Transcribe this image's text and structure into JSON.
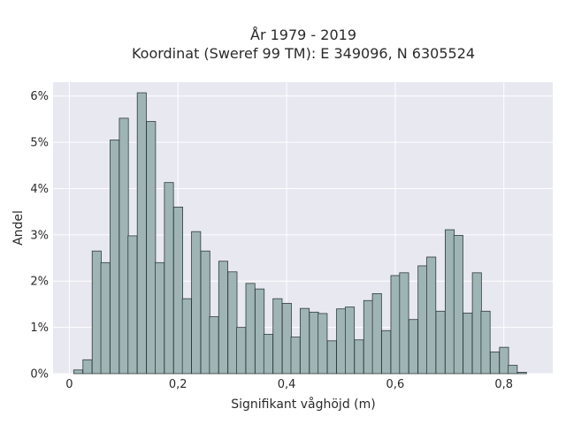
{
  "chart_data": {
    "type": "bar",
    "title_line1": "År 1979 - 2019",
    "title_line2": "Koordinat (Sweref 99 TM): E 349096, N 6305524",
    "xlabel": "Signifikant våghöjd (m)",
    "ylabel": "Andel",
    "xlim": [
      -0.03,
      0.89
    ],
    "ylim": [
      0,
      6.3
    ],
    "x_ticks": [
      0,
      0.2,
      0.4,
      0.6,
      0.8
    ],
    "x_tick_labels": [
      "0",
      "0,2",
      "0,4",
      "0,6",
      "0,8"
    ],
    "y_ticks": [
      0,
      1,
      2,
      3,
      4,
      5,
      6
    ],
    "y_tick_labels": [
      "0%",
      "1%",
      "2%",
      "3%",
      "4%",
      "5%",
      "6%"
    ],
    "bin_width": 0.0167,
    "bin_starts": [
      0.008,
      0.025,
      0.042,
      0.058,
      0.075,
      0.092,
      0.108,
      0.125,
      0.142,
      0.158,
      0.175,
      0.192,
      0.208,
      0.225,
      0.242,
      0.258,
      0.275,
      0.292,
      0.308,
      0.325,
      0.342,
      0.358,
      0.375,
      0.392,
      0.408,
      0.425,
      0.442,
      0.458,
      0.475,
      0.492,
      0.508,
      0.525,
      0.542,
      0.558,
      0.575,
      0.592,
      0.608,
      0.625,
      0.642,
      0.658,
      0.675,
      0.692,
      0.708,
      0.725,
      0.742,
      0.758,
      0.775,
      0.792,
      0.808,
      0.825
    ],
    "values": [
      0.08,
      0.3,
      2.65,
      2.4,
      5.05,
      5.52,
      2.98,
      6.07,
      5.45,
      2.4,
      4.13,
      3.6,
      1.62,
      3.07,
      2.65,
      1.23,
      2.43,
      2.2,
      1.0,
      1.95,
      1.83,
      0.85,
      1.62,
      1.52,
      0.79,
      1.41,
      1.33,
      1.3,
      0.71,
      1.4,
      1.44,
      0.73,
      1.58,
      1.73,
      0.93,
      2.12,
      2.18,
      1.17,
      2.33,
      2.52,
      1.35,
      3.11,
      2.99,
      1.31,
      2.18,
      1.35,
      0.47,
      0.57,
      0.18,
      0.03
    ],
    "grid": true,
    "colors": {
      "bar_fill": "#9fb5b5",
      "bar_edge": "#2f3b3b",
      "plot_bg": "#e8e8f1",
      "grid": "#ffffff"
    }
  }
}
